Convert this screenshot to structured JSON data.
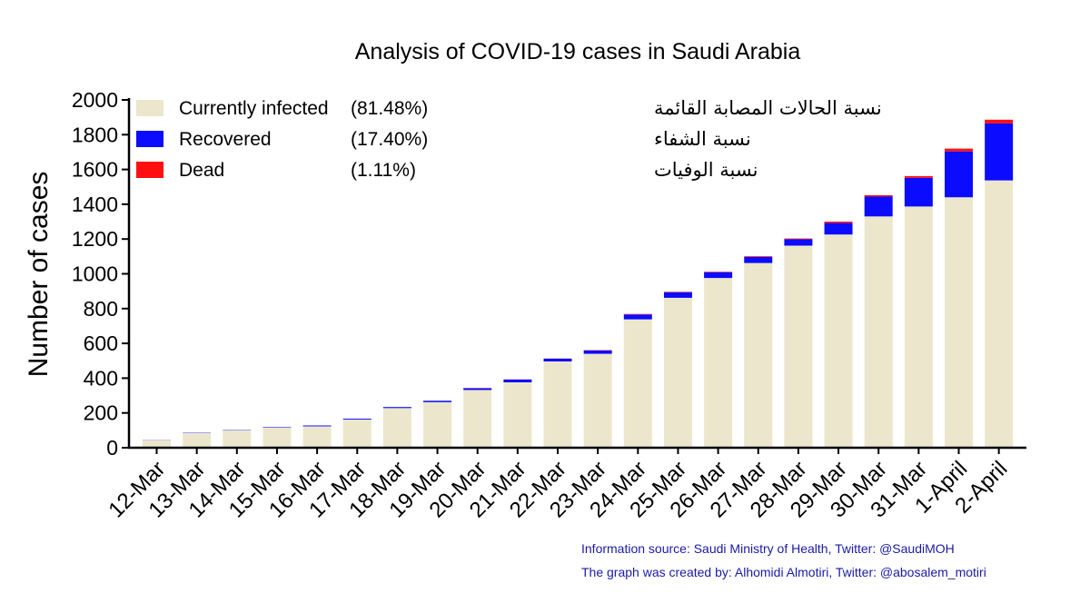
{
  "chart_data": {
    "type": "bar",
    "stacked": true,
    "title": "Analysis of COVID-19 cases in Saudi Arabia",
    "ylabel": "Number of cases",
    "xlabel": "",
    "ylim": [
      0,
      2000
    ],
    "yticks": [
      0,
      200,
      400,
      600,
      800,
      1000,
      1200,
      1400,
      1600,
      1800,
      2000
    ],
    "categories": [
      "12-Mar",
      "13-Mar",
      "14-Mar",
      "15-Mar",
      "16-Mar",
      "17-Mar",
      "18-Mar",
      "19-Mar",
      "20-Mar",
      "21-Mar",
      "22-Mar",
      "23-Mar",
      "24-Mar",
      "25-Mar",
      "26-Mar",
      "27-Mar",
      "28-Mar",
      "29-Mar",
      "30-Mar",
      "31-Mar",
      "1-April",
      "2-April"
    ],
    "series": [
      {
        "name": "Currently infected",
        "color": "#ece6cc",
        "values": [
          44,
          84,
          101,
          115,
          123,
          162,
          228,
          262,
          332,
          376,
          496,
          540,
          738,
          862,
          976,
          1062,
          1162,
          1226,
          1330,
          1387,
          1440,
          1537
        ]
      },
      {
        "name": "Recovered",
        "color": "#0b0bff",
        "values": [
          1,
          2,
          2,
          3,
          5,
          5,
          6,
          8,
          10,
          16,
          16,
          19,
          28,
          31,
          33,
          35,
          37,
          66,
          114,
          165,
          264,
          328
        ]
      },
      {
        "name": "Dead",
        "color": "#ff1010",
        "values": [
          0,
          0,
          0,
          0,
          0,
          0,
          0,
          0,
          1,
          1,
          1,
          2,
          3,
          3,
          3,
          4,
          4,
          8,
          8,
          10,
          16,
          21
        ]
      }
    ],
    "legend": [
      {
        "label": "Currently infected",
        "percent": "(81.48%)",
        "arabic": "نسبة الحالات المصابة القائمة",
        "color": "#ece6cc"
      },
      {
        "label": "Recovered",
        "percent": "(17.40%)",
        "arabic": "نسبة الشفاء",
        "color": "#0b0bff"
      },
      {
        "label": "Dead",
        "percent": "(1.11%)",
        "arabic": "نسبة الوفيات",
        "color": "#ff1010"
      }
    ],
    "legend_position": "top-left",
    "grid": false,
    "annotations": [
      "Information source:  Saudi Ministry of Health, Twitter: @SaudiMOH",
      "The graph was created by: Alhomidi Almotiri, Twitter: @abosalem_motiri"
    ]
  }
}
